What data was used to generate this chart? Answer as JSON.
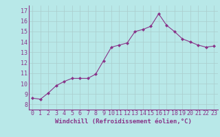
{
  "x": [
    0,
    1,
    2,
    3,
    4,
    5,
    6,
    7,
    8,
    9,
    10,
    11,
    12,
    13,
    14,
    15,
    16,
    17,
    18,
    19,
    20,
    21,
    22,
    23
  ],
  "y": [
    8.6,
    8.5,
    9.1,
    9.8,
    10.2,
    10.5,
    10.5,
    10.5,
    10.9,
    12.2,
    13.5,
    13.7,
    13.9,
    15.0,
    15.2,
    15.5,
    16.7,
    15.6,
    15.0,
    14.3,
    14.0,
    13.7,
    13.5,
    13.6
  ],
  "line_color": "#883388",
  "marker": "D",
  "markersize": 2.0,
  "linewidth": 0.8,
  "bg_color": "#b8e8e8",
  "grid_color": "#aacccc",
  "xlabel": "Windchill (Refroidissement éolien,°C)",
  "xlabel_color": "#883388",
  "xlabel_fontsize": 6.5,
  "ylabel_ticks": [
    8,
    9,
    10,
    11,
    12,
    13,
    14,
    15,
    16,
    17
  ],
  "xlim": [
    -0.5,
    23.5
  ],
  "ylim": [
    7.5,
    17.5
  ],
  "tick_label_color": "#883388",
  "tick_label_fontsize": 6,
  "xtick_labels": [
    "0",
    "1",
    "2",
    "3",
    "4",
    "5",
    "6",
    "7",
    "8",
    "9",
    "10",
    "11",
    "12",
    "13",
    "14",
    "15",
    "16",
    "17",
    "18",
    "19",
    "20",
    "21",
    "22",
    "23"
  ],
  "grid_linewidth": 0.5,
  "axis_label_fontsize": 6.5
}
